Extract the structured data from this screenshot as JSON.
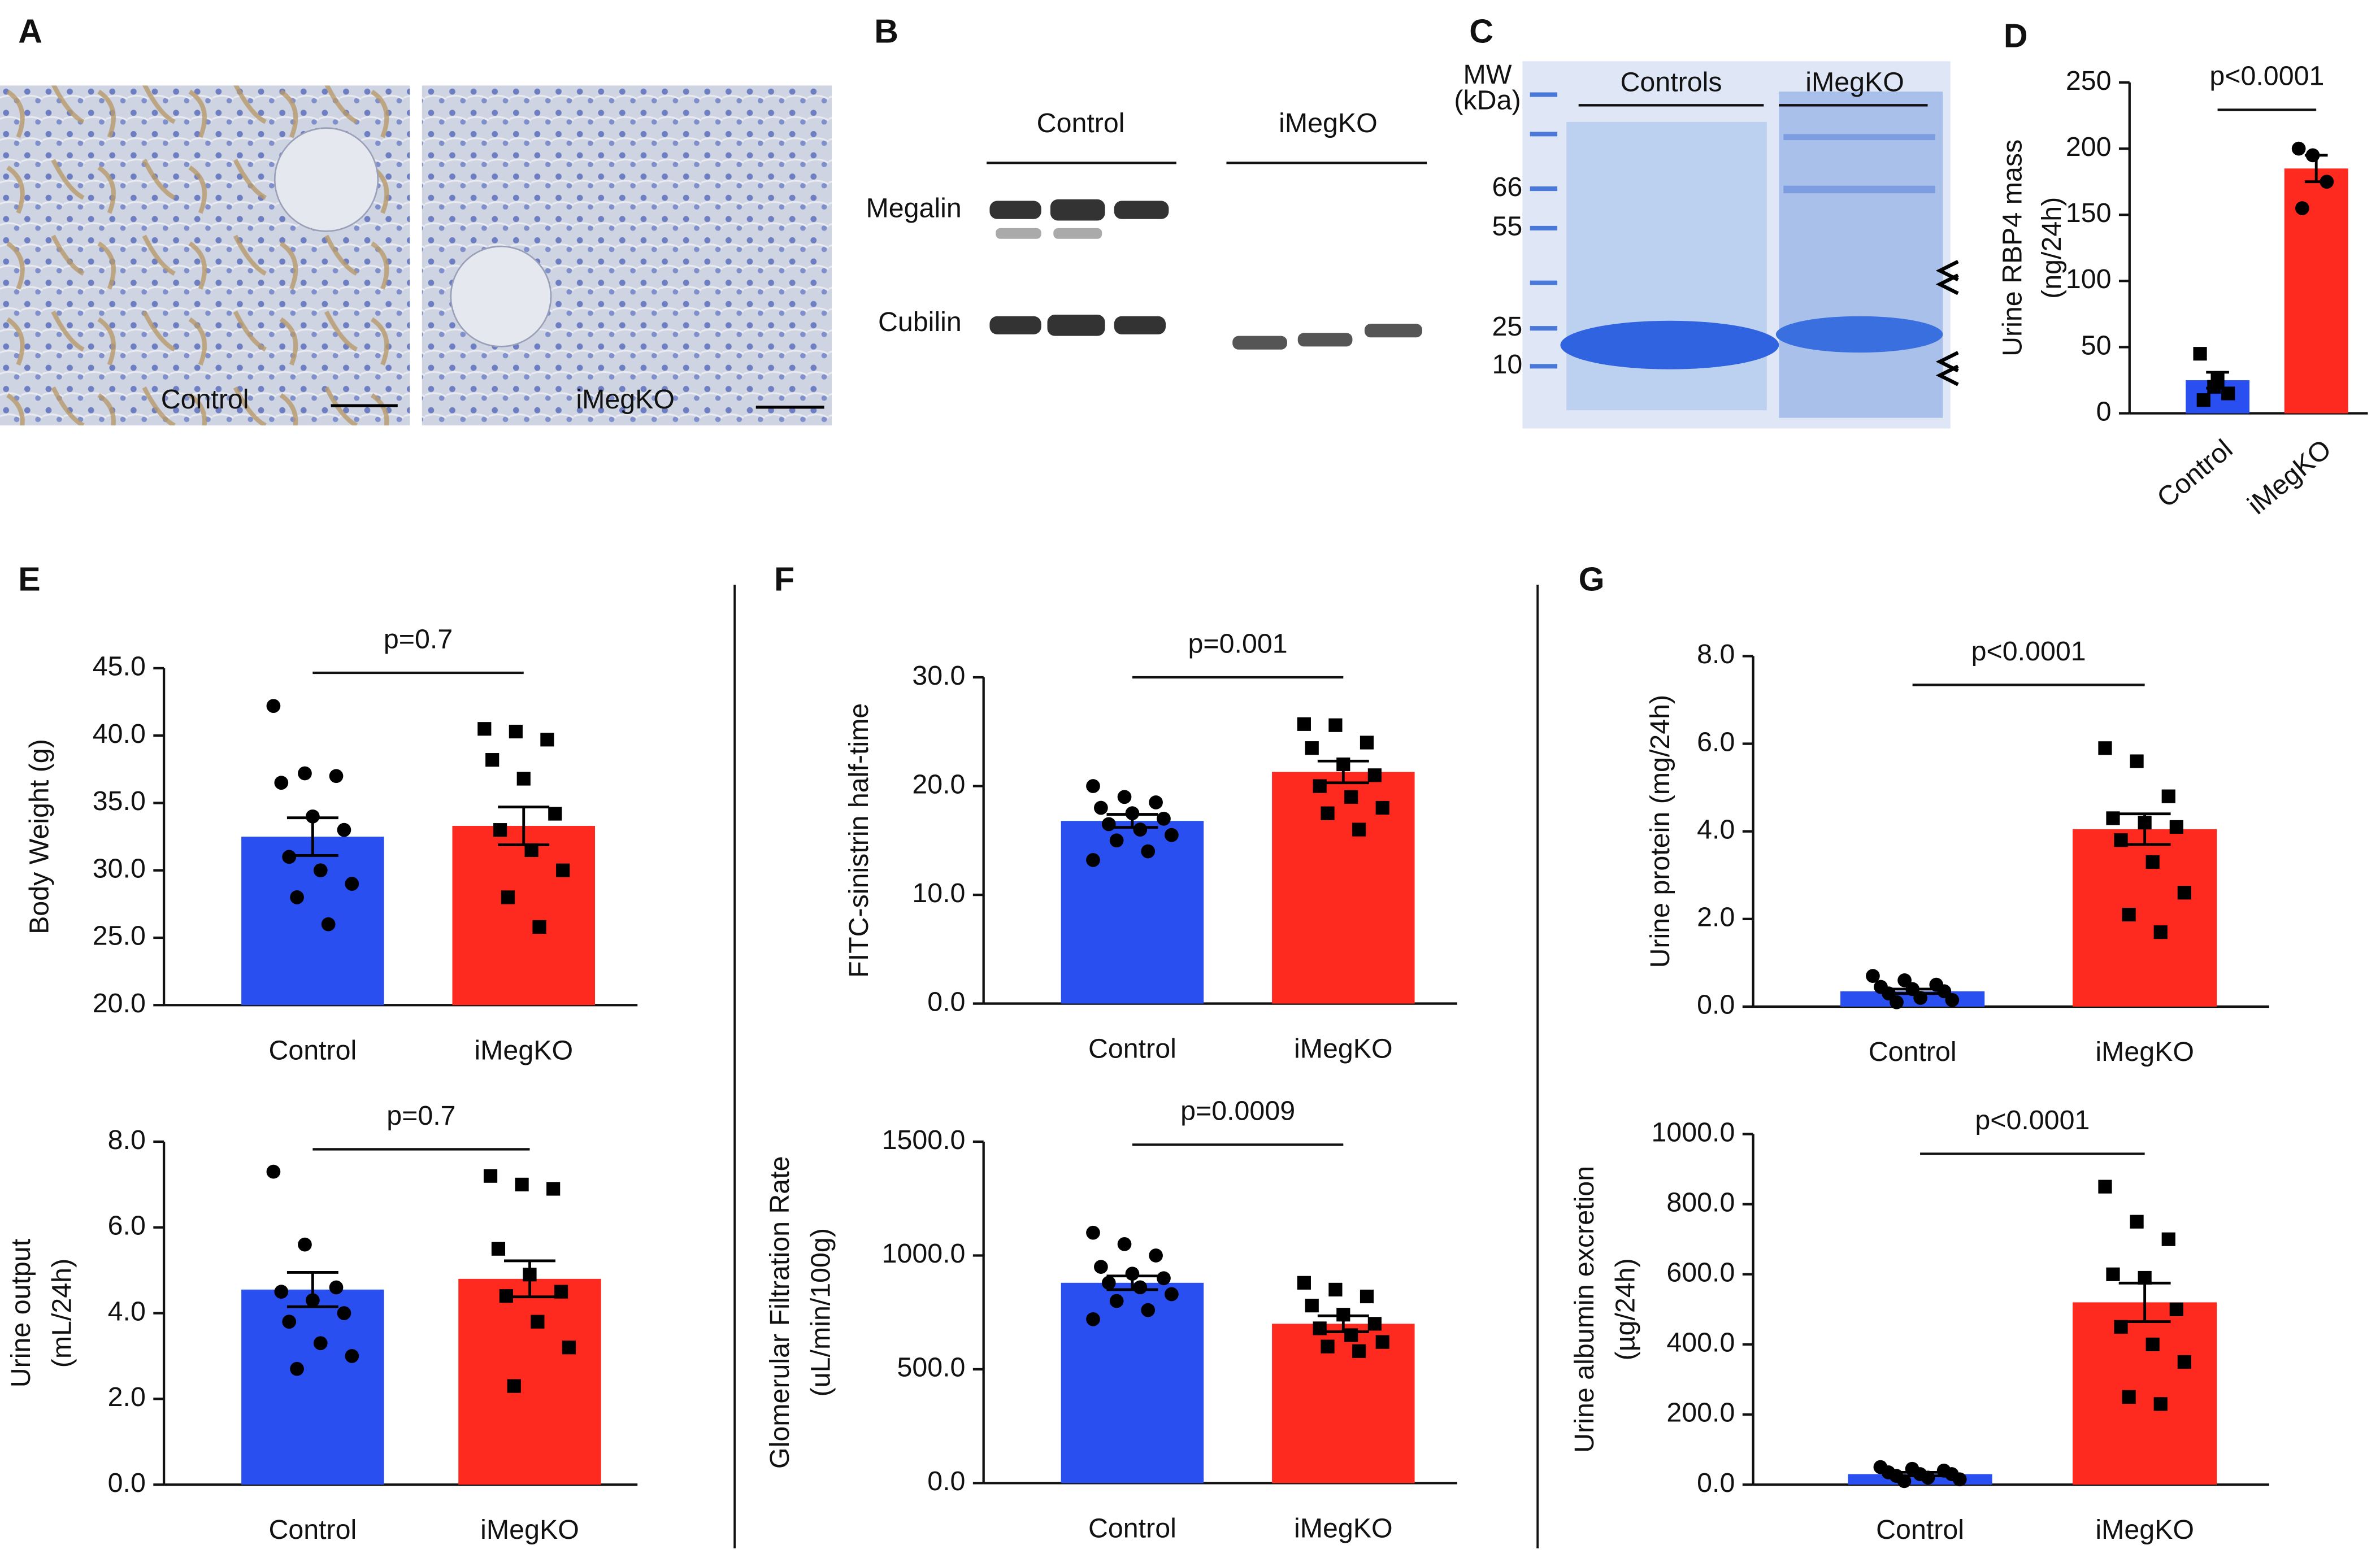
{
  "panels": {
    "A": {
      "label": "A",
      "captions": [
        "Control",
        "iMegKO"
      ]
    },
    "B": {
      "label": "B",
      "groups": [
        "Control",
        "iMegKO"
      ],
      "rows": [
        "Megalin",
        "Cubilin"
      ]
    },
    "C": {
      "label": "C",
      "mw_label": [
        "MW",
        "(kDa)"
      ],
      "mw": [
        "66",
        "55",
        "25",
        "10"
      ],
      "groups": [
        "Controls",
        "iMegKO"
      ]
    }
  },
  "chart_data": [
    {
      "type": "bar",
      "panel": "D",
      "ylabel": [
        "Urine RBP4 mass",
        "(ng/24h)"
      ],
      "categories": [
        "Control",
        "iMegKO"
      ],
      "colors": [
        "#2a4ff0",
        "#ff2a1f"
      ],
      "markers": [
        "square",
        "circle"
      ],
      "values": [
        25,
        185
      ],
      "errors": [
        6,
        10
      ],
      "points": [
        [
          45,
          20,
          15,
          10,
          25
        ],
        [
          200,
          195,
          175,
          155
        ]
      ],
      "ylim": [
        0,
        250
      ],
      "yticks": [
        0,
        50,
        100,
        150,
        200,
        250
      ],
      "pvalue": "p<0.0001"
    },
    {
      "type": "bar",
      "panel": "E",
      "ylabel": [
        "Body Weight (g)"
      ],
      "categories": [
        "Control",
        "iMegKO"
      ],
      "colors": [
        "#2a4ff0",
        "#ff2a1f"
      ],
      "markers": [
        "circle",
        "square"
      ],
      "values": [
        32.5,
        33.3
      ],
      "errors": [
        1.4,
        1.4
      ],
      "points": [
        [
          42.2,
          37.2,
          37,
          36.5,
          34,
          33,
          31,
          30,
          29,
          28,
          26
        ],
        [
          40.5,
          40.3,
          39.7,
          38.2,
          36.8,
          34.2,
          33,
          31.5,
          30,
          28,
          25.8
        ]
      ],
      "ylim": [
        20,
        45
      ],
      "yticks": [
        {
          "value": 20,
          "label": "20.0"
        },
        {
          "value": 25,
          "label": "25.0"
        },
        {
          "value": 30,
          "label": "30.0"
        },
        {
          "value": 35,
          "label": "35.0"
        },
        {
          "value": 40,
          "label": "40.0"
        },
        {
          "value": 45,
          "label": "45.0"
        }
      ],
      "pvalue": "p=0.7"
    },
    {
      "type": "bar",
      "ylabel": [
        "Urine output",
        "(mL/24h)"
      ],
      "categories": [
        "Control",
        "iMegKO"
      ],
      "colors": [
        "#2a4ff0",
        "#ff2a1f"
      ],
      "markers": [
        "circle",
        "square"
      ],
      "values": [
        4.55,
        4.8
      ],
      "errors": [
        0.4,
        0.42
      ],
      "points": [
        [
          7.3,
          5.6,
          4.6,
          4.5,
          4.3,
          4,
          3.8,
          3.3,
          3.0,
          2.7
        ],
        [
          7.2,
          7.0,
          6.9,
          5.5,
          4.9,
          4.5,
          4.4,
          3.8,
          3.2,
          2.3
        ]
      ],
      "ylim": [
        0,
        8
      ],
      "yticks": [
        {
          "value": 0,
          "label": "0.0"
        },
        {
          "value": 2,
          "label": "2.0"
        },
        {
          "value": 4,
          "label": "4.0"
        },
        {
          "value": 6,
          "label": "6.0"
        },
        {
          "value": 8,
          "label": "8.0"
        }
      ],
      "pvalue": "p=0.7"
    },
    {
      "type": "bar",
      "panel": "F",
      "ylabel": [
        "FITC-sinistrin half-time"
      ],
      "categories": [
        "Control",
        "iMegKO"
      ],
      "colors": [
        "#2a4ff0",
        "#ff2a1f"
      ],
      "markers": [
        "circle",
        "square"
      ],
      "values": [
        16.8,
        21.3
      ],
      "errors": [
        0.6,
        1.0
      ],
      "points": [
        [
          20,
          19,
          18.5,
          18,
          17.5,
          17,
          16.5,
          16,
          15.5,
          15,
          14,
          13.2
        ],
        [
          25.7,
          25.6,
          24,
          23.5,
          22,
          21,
          20,
          19,
          18,
          17.5,
          16
        ]
      ],
      "ylim": [
        0,
        30
      ],
      "yticks": [
        {
          "value": 0,
          "label": "0.0"
        },
        {
          "value": 10,
          "label": "10.0"
        },
        {
          "value": 20,
          "label": "20.0"
        },
        {
          "value": 30,
          "label": "30.0"
        }
      ],
      "pvalue": "p=0.001"
    },
    {
      "type": "bar",
      "ylabel": [
        "Glomerular Filtration Rate",
        "(uL/min/100g)"
      ],
      "categories": [
        "Control",
        "iMegKO"
      ],
      "colors": [
        "#2a4ff0",
        "#ff2a1f"
      ],
      "markers": [
        "circle",
        "square"
      ],
      "values": [
        880,
        700
      ],
      "errors": [
        30,
        35
      ],
      "points": [
        [
          1100,
          1050,
          1000,
          950,
          920,
          900,
          880,
          860,
          830,
          800,
          760,
          720
        ],
        [
          880,
          850,
          820,
          780,
          740,
          700,
          680,
          650,
          620,
          600,
          580
        ]
      ],
      "ylim": [
        0,
        1500
      ],
      "yticks": [
        {
          "value": 0,
          "label": "0.0"
        },
        {
          "value": 500,
          "label": "500.0"
        },
        {
          "value": 1000,
          "label": "1000.0"
        },
        {
          "value": 1500,
          "label": "1500.0"
        }
      ],
      "pvalue": "p=0.0009"
    },
    {
      "type": "bar",
      "panel": "G",
      "ylabel": [
        "Urine protein (mg/24h)"
      ],
      "categories": [
        "Control",
        "iMegKO"
      ],
      "colors": [
        "#2a4ff0",
        "#ff2a1f"
      ],
      "markers": [
        "circle",
        "square"
      ],
      "values": [
        0.35,
        4.05
      ],
      "errors": [
        0.05,
        0.35
      ],
      "points": [
        [
          0.7,
          0.6,
          0.5,
          0.45,
          0.4,
          0.35,
          0.3,
          0.2,
          0.15,
          0.1
        ],
        [
          5.9,
          5.6,
          4.8,
          4.3,
          4.2,
          4.1,
          3.8,
          3.3,
          2.6,
          2.1,
          1.7
        ]
      ],
      "ylim": [
        0,
        8
      ],
      "yticks": [
        {
          "value": 0,
          "label": "0.0"
        },
        {
          "value": 2,
          "label": "2.0"
        },
        {
          "value": 4,
          "label": "4.0"
        },
        {
          "value": 6,
          "label": "6.0"
        },
        {
          "value": 8,
          "label": "8.0"
        }
      ],
      "pvalue": "p<0.0001"
    },
    {
      "type": "bar",
      "ylabel": [
        "Urine albumin excretion",
        "(µg/24h)"
      ],
      "categories": [
        "Control",
        "iMegKO"
      ],
      "colors": [
        "#2a4ff0",
        "#ff2a1f"
      ],
      "markers": [
        "circle",
        "square"
      ],
      "values": [
        30,
        520
      ],
      "errors": [
        5,
        55
      ],
      "points": [
        [
          50,
          45,
          40,
          35,
          30,
          30,
          25,
          20,
          15,
          10
        ],
        [
          850,
          750,
          700,
          600,
          590,
          500,
          450,
          400,
          350,
          250,
          230
        ]
      ],
      "ylim": [
        0,
        1000
      ],
      "yticks": [
        {
          "value": 0,
          "label": "0.0"
        },
        {
          "value": 200,
          "label": "200.0"
        },
        {
          "value": 400,
          "label": "400.0"
        },
        {
          "value": 600,
          "label": "600.0"
        },
        {
          "value": 800,
          "label": "800.0"
        },
        {
          "value": 1000,
          "label": "1000.0"
        }
      ],
      "pvalue": "p<0.0001"
    }
  ]
}
